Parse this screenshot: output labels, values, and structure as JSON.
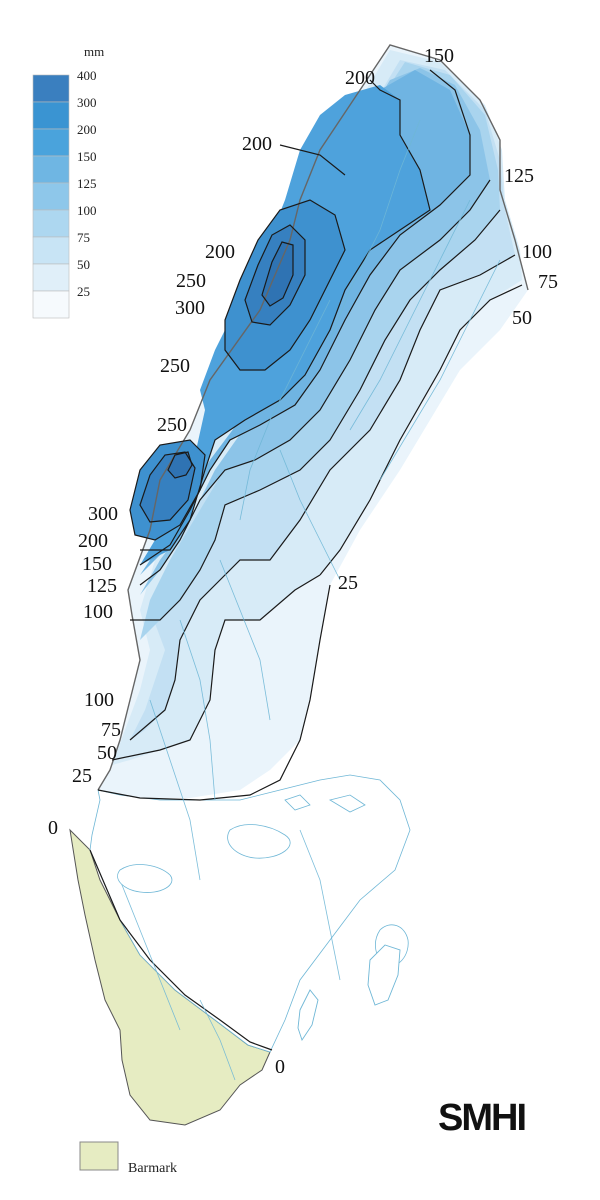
{
  "legend": {
    "unit": "mm",
    "classes": [
      {
        "label": "400",
        "color": "#3a7fbf"
      },
      {
        "label": "300",
        "color": "#3a94d2"
      },
      {
        "label": "200",
        "color": "#4aa3dc"
      },
      {
        "label": "150",
        "color": "#6fb6e3"
      },
      {
        "label": "125",
        "color": "#8ec7ea"
      },
      {
        "label": "100",
        "color": "#add7f0"
      },
      {
        "label": "75",
        "color": "#c8e4f5"
      },
      {
        "label": "50",
        "color": "#e0eff9"
      },
      {
        "label": "25",
        "color": "#f6fafd"
      }
    ]
  },
  "contour_labels": {
    "c150_ne": "150",
    "c200_n": "200",
    "c200_nw": "200",
    "c125_e": "125",
    "c200_w": "200",
    "c100_e": "100",
    "c250_w": "250",
    "c75_e": "75",
    "c300_w": "300",
    "c50_e": "50",
    "c250_mid": "250",
    "c250_sw": "250",
    "c300_sw": "300",
    "c200_sw": "200",
    "c150_sw": "150",
    "c125_sw": "125",
    "c100_sw": "100",
    "c25_e": "25",
    "c100_s": "100",
    "c75_s": "75",
    "c50_s": "50",
    "c25_s": "25",
    "c0_w": "0",
    "c0_se": "0"
  },
  "bare_ground": {
    "label": "Barmark",
    "color": "#e6ecc2"
  },
  "logo": "SMHI"
}
